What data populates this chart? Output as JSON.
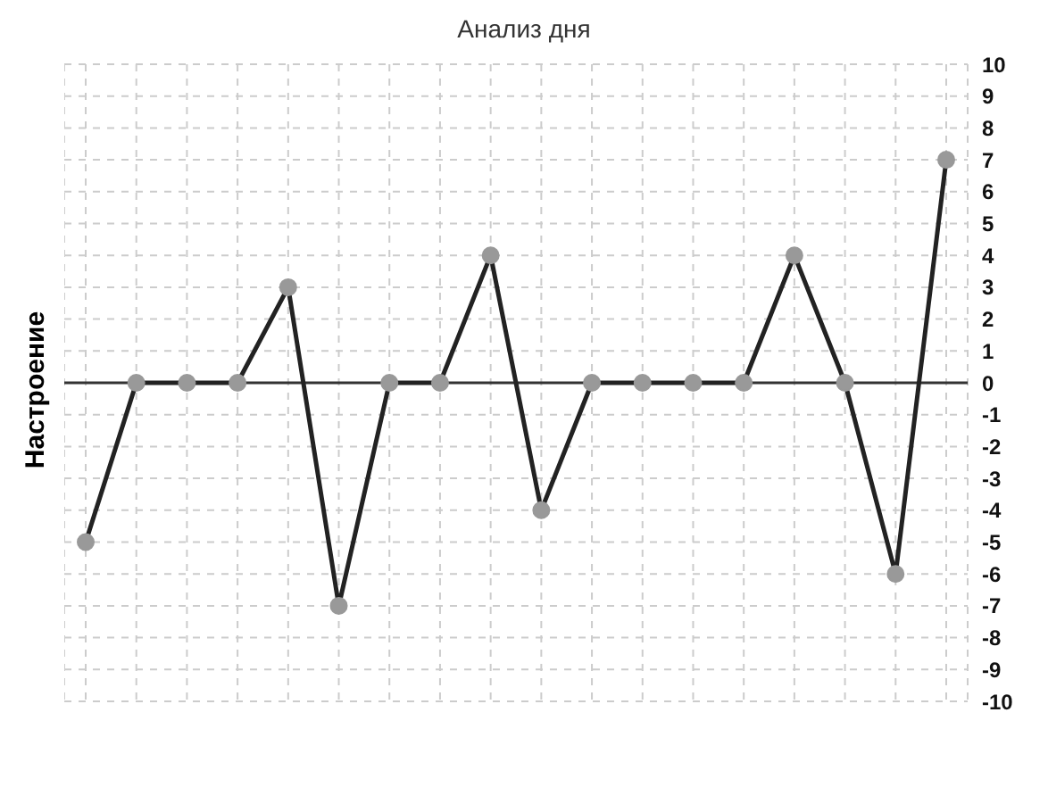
{
  "chart_data": {
    "type": "line",
    "title": "Анализ дня",
    "ylabel": "Настроение",
    "categories": [
      null,
      null,
      null,
      null,
      null,
      null,
      null,
      null,
      null,
      null,
      null,
      null,
      null,
      null,
      null,
      null,
      null,
      null
    ],
    "series": [
      {
        "color": "#222222",
        "values": [
          -5,
          0,
          0,
          0,
          3,
          -7,
          0,
          0,
          4,
          -4,
          0,
          0,
          0,
          0,
          4,
          0,
          -6,
          7
        ]
      }
    ],
    "ylim": [
      -10,
      10
    ],
    "yticks": [
      -10,
      -9,
      -8,
      -7,
      -6,
      -5,
      -4,
      -3,
      -2,
      -1,
      0,
      1,
      2,
      3,
      4,
      5,
      6,
      7,
      8,
      9,
      10
    ],
    "ref_lines": [
      {
        "axis": "y",
        "value": 0,
        "color": "#333333"
      }
    ],
    "grid": true,
    "marker": "circle",
    "line_style": "solid"
  }
}
